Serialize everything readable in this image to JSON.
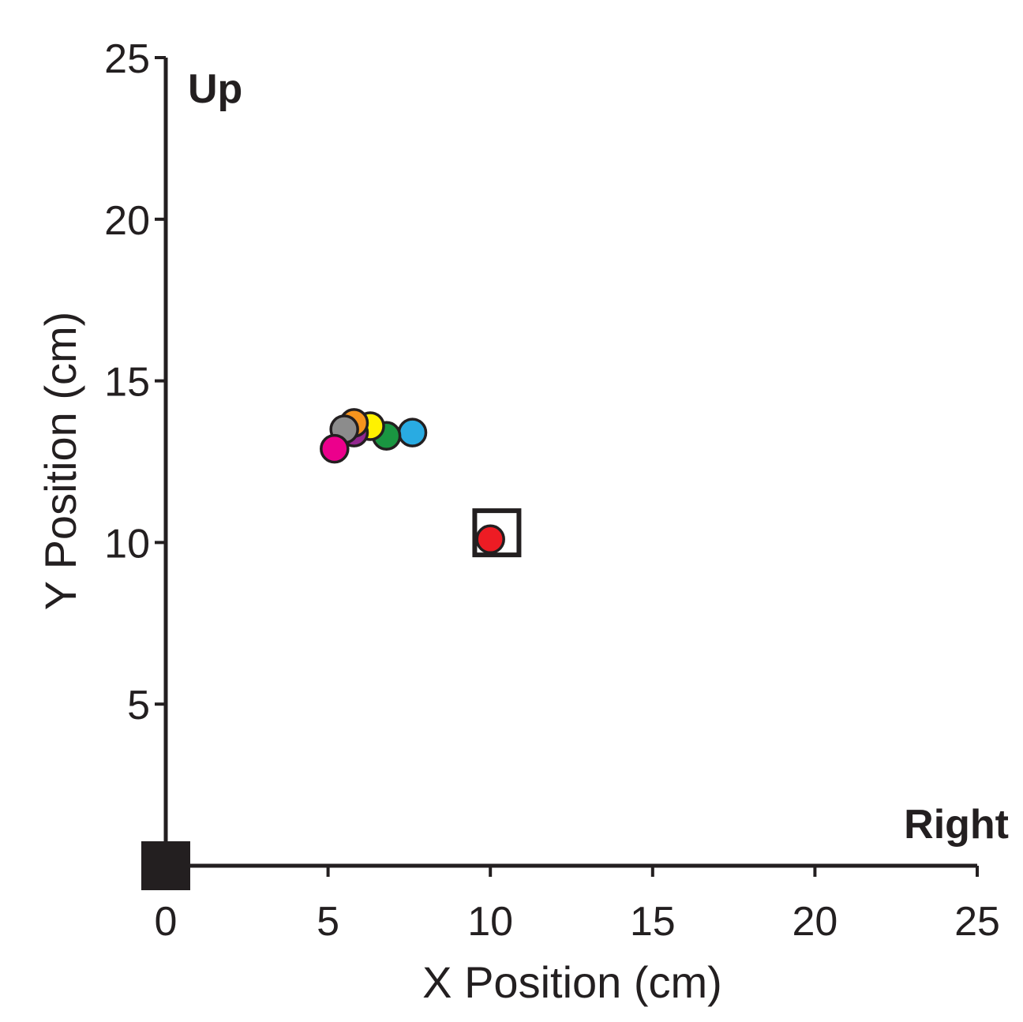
{
  "chart_data": {
    "type": "scatter",
    "xlabel": "X Position (cm)",
    "ylabel": "Y Position (cm)",
    "xlim": [
      0,
      25
    ],
    "ylim": [
      0,
      25
    ],
    "x_ticks": [
      0,
      5,
      10,
      15,
      20,
      25
    ],
    "y_ticks": [
      5,
      10,
      15,
      20,
      25
    ],
    "grid": false,
    "direction_labels": {
      "x": "Right",
      "y": "Up"
    },
    "origin_marker": {
      "x": 0,
      "y": 0,
      "shape": "filled-square",
      "color": "#231f20"
    },
    "target_marker": {
      "x": 10.2,
      "y": 10.3,
      "shape": "open-square",
      "color": "#231f20"
    },
    "points": [
      {
        "x": 7.6,
        "y": 13.4,
        "color": "#29abe2"
      },
      {
        "x": 6.8,
        "y": 13.3,
        "color": "#1a9641"
      },
      {
        "x": 6.3,
        "y": 13.6,
        "color": "#fff200"
      },
      {
        "x": 5.8,
        "y": 13.4,
        "color": "#92278f"
      },
      {
        "x": 5.8,
        "y": 13.7,
        "color": "#f7941d"
      },
      {
        "x": 5.5,
        "y": 13.5,
        "color": "#8c8c8c"
      },
      {
        "x": 5.2,
        "y": 12.9,
        "color": "#ec008c"
      },
      {
        "x": 10.0,
        "y": 10.1,
        "color": "#ed1c24"
      }
    ]
  }
}
